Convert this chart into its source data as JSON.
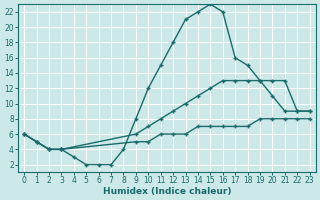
{
  "xlabel": "Humidex (Indice chaleur)",
  "bg_color": "#cce8e8",
  "grid_color": "#b0d4d4",
  "line_color": "#1a6b6b",
  "xlim": [
    -0.5,
    23.5
  ],
  "ylim": [
    1,
    23
  ],
  "yticks": [
    2,
    4,
    6,
    8,
    10,
    12,
    14,
    16,
    18,
    20,
    22
  ],
  "xticks": [
    0,
    1,
    2,
    3,
    4,
    5,
    6,
    7,
    8,
    9,
    10,
    11,
    12,
    13,
    14,
    15,
    16,
    17,
    18,
    19,
    20,
    21,
    22,
    23
  ],
  "line1_x": [
    0,
    1,
    2,
    3,
    4,
    5,
    6,
    7,
    8,
    9,
    10,
    11,
    12,
    13,
    14,
    15,
    16,
    17,
    18,
    19,
    20,
    21,
    22,
    23
  ],
  "line1_y": [
    6,
    5,
    4,
    4,
    3,
    2,
    2,
    2,
    4,
    8,
    12,
    15,
    18,
    21,
    22,
    23,
    22,
    16,
    15,
    13,
    11,
    9,
    9,
    9
  ],
  "line2_x": [
    0,
    1,
    2,
    3,
    9,
    10,
    11,
    12,
    13,
    14,
    15,
    16,
    17,
    18,
    19,
    20,
    21,
    22,
    23
  ],
  "line2_y": [
    6,
    5,
    4,
    4,
    6,
    7,
    8,
    9,
    10,
    11,
    12,
    13,
    13,
    13,
    13,
    13,
    13,
    9,
    9
  ],
  "line3_x": [
    0,
    1,
    2,
    3,
    9,
    10,
    11,
    12,
    13,
    14,
    15,
    16,
    17,
    18,
    19,
    20,
    21,
    22,
    23
  ],
  "line3_y": [
    6,
    5,
    4,
    4,
    5,
    5,
    6,
    6,
    6,
    7,
    7,
    7,
    7,
    7,
    8,
    8,
    8,
    8,
    8
  ]
}
